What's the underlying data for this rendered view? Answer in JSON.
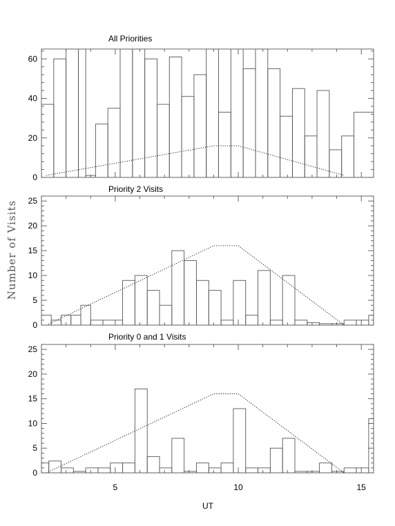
{
  "chart_data": [
    {
      "type": "histogram",
      "title": "All Priorities",
      "xlim": [
        2,
        15.5
      ],
      "ylim": [
        0,
        65
      ],
      "yticks": [
        0,
        20,
        40,
        60
      ],
      "xtick_labels_shown": false,
      "bin_width": 0.5,
      "bins": [
        {
          "x": 2.0,
          "y": 37
        },
        {
          "x": 2.5,
          "y": 60
        },
        {
          "x": 3.0,
          "y": 65
        },
        {
          "x": 3.5,
          "y": 65
        },
        {
          "x": 3.8,
          "y": 1
        },
        {
          "x": 4.2,
          "y": 27
        },
        {
          "x": 4.7,
          "y": 35
        },
        {
          "x": 5.2,
          "y": 65
        },
        {
          "x": 5.7,
          "y": 65
        },
        {
          "x": 6.2,
          "y": 60
        },
        {
          "x": 6.7,
          "y": 37
        },
        {
          "x": 7.2,
          "y": 61
        },
        {
          "x": 7.7,
          "y": 41
        },
        {
          "x": 8.2,
          "y": 52
        },
        {
          "x": 8.7,
          "y": 65
        },
        {
          "x": 9.2,
          "y": 33
        },
        {
          "x": 9.7,
          "y": 65
        },
        {
          "x": 10.2,
          "y": 55
        },
        {
          "x": 10.7,
          "y": 65
        },
        {
          "x": 11.2,
          "y": 55
        },
        {
          "x": 11.7,
          "y": 31
        },
        {
          "x": 12.2,
          "y": 45
        },
        {
          "x": 12.7,
          "y": 21
        },
        {
          "x": 13.2,
          "y": 44
        },
        {
          "x": 13.7,
          "y": 14
        },
        {
          "x": 14.2,
          "y": 21
        },
        {
          "x": 14.7,
          "y": 33
        }
      ],
      "dotted_curve": {
        "x": [
          2.2,
          9.0,
          10.0,
          14.3
        ],
        "y": [
          1,
          16,
          16,
          1
        ]
      }
    },
    {
      "type": "histogram",
      "title": "Priority 2 Visits",
      "xlim": [
        2,
        15.5
      ],
      "ylim": [
        0,
        26
      ],
      "yticks": [
        0,
        5,
        10,
        15,
        20,
        25
      ],
      "xtick_labels_shown": false,
      "bin_width": 0.5,
      "bins": [
        {
          "x": 2.0,
          "y": 2
        },
        {
          "x": 2.4,
          "y": 1
        },
        {
          "x": 2.8,
          "y": 2
        },
        {
          "x": 3.2,
          "y": 2
        },
        {
          "x": 3.6,
          "y": 4
        },
        {
          "x": 4.0,
          "y": 1
        },
        {
          "x": 4.5,
          "y": 1
        },
        {
          "x": 5.3,
          "y": 9
        },
        {
          "x": 5.8,
          "y": 10
        },
        {
          "x": 6.3,
          "y": 7
        },
        {
          "x": 6.8,
          "y": 4
        },
        {
          "x": 7.3,
          "y": 15
        },
        {
          "x": 7.8,
          "y": 13
        },
        {
          "x": 8.3,
          "y": 9
        },
        {
          "x": 8.8,
          "y": 7
        },
        {
          "x": 9.3,
          "y": 1
        },
        {
          "x": 9.8,
          "y": 9
        },
        {
          "x": 10.3,
          "y": 2
        },
        {
          "x": 10.8,
          "y": 11
        },
        {
          "x": 11.3,
          "y": 1
        },
        {
          "x": 11.8,
          "y": 10
        },
        {
          "x": 12.3,
          "y": 1
        },
        {
          "x": 12.8,
          "y": 0.5
        },
        {
          "x": 13.3,
          "y": 0.3
        },
        {
          "x": 13.8,
          "y": 0.3
        },
        {
          "x": 14.3,
          "y": 1
        },
        {
          "x": 14.8,
          "y": 1
        },
        {
          "x": 15.3,
          "y": 2
        }
      ],
      "dotted_curve": {
        "x": [
          2.2,
          9.0,
          10.0,
          14.3
        ],
        "y": [
          0,
          16,
          16,
          0
        ]
      }
    },
    {
      "type": "histogram",
      "title": "Priority 0 and 1 Visits",
      "xlim": [
        2,
        15.5
      ],
      "ylim": [
        0,
        26
      ],
      "yticks": [
        0,
        5,
        10,
        15,
        20,
        25
      ],
      "xticks": [
        5,
        10,
        15
      ],
      "xlabel": "UT",
      "bin_width": 0.5,
      "bins": [
        {
          "x": 2.0,
          "y": 2
        },
        {
          "x": 2.3,
          "y": 2.4
        },
        {
          "x": 2.8,
          "y": 1
        },
        {
          "x": 3.3,
          "y": 0.3
        },
        {
          "x": 3.8,
          "y": 1
        },
        {
          "x": 4.3,
          "y": 1
        },
        {
          "x": 4.8,
          "y": 2
        },
        {
          "x": 5.3,
          "y": 2
        },
        {
          "x": 5.8,
          "y": 17
        },
        {
          "x": 6.3,
          "y": 3.3
        },
        {
          "x": 6.8,
          "y": 1
        },
        {
          "x": 7.3,
          "y": 7
        },
        {
          "x": 7.8,
          "y": 0.3
        },
        {
          "x": 8.3,
          "y": 2
        },
        {
          "x": 8.8,
          "y": 1
        },
        {
          "x": 9.3,
          "y": 2
        },
        {
          "x": 9.8,
          "y": 13
        },
        {
          "x": 10.3,
          "y": 1
        },
        {
          "x": 10.8,
          "y": 1
        },
        {
          "x": 11.3,
          "y": 5
        },
        {
          "x": 11.8,
          "y": 7
        },
        {
          "x": 12.3,
          "y": 0.3
        },
        {
          "x": 12.8,
          "y": 0.3
        },
        {
          "x": 13.3,
          "y": 2
        },
        {
          "x": 13.8,
          "y": 0.3
        },
        {
          "x": 14.3,
          "y": 1
        },
        {
          "x": 14.8,
          "y": 1
        },
        {
          "x": 15.3,
          "y": 11
        }
      ],
      "dotted_curve": {
        "x": [
          2.2,
          9.0,
          10.0,
          14.3
        ],
        "y": [
          0,
          16,
          16,
          0
        ]
      }
    }
  ],
  "ylabel": "Number of Visits"
}
